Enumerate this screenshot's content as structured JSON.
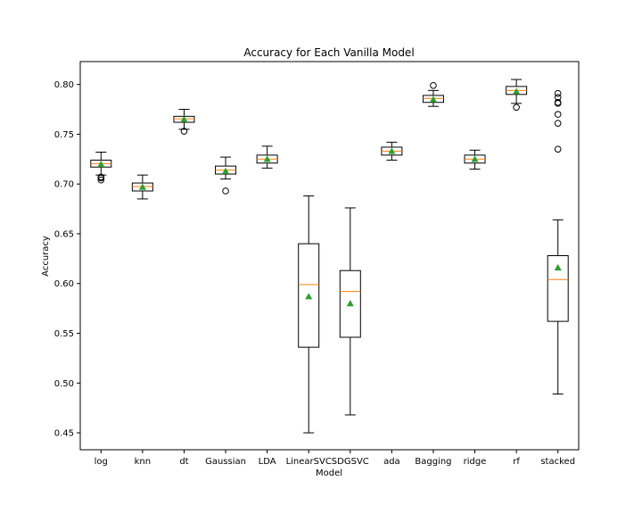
{
  "chart_data": {
    "type": "box",
    "title": "Accuracy for Each Vanilla Model",
    "xlabel": "Model",
    "ylabel": "Accuracy",
    "ylim": [
      0.433,
      0.823
    ],
    "yticks": [
      "0.45",
      "0.50",
      "0.55",
      "0.60",
      "0.65",
      "0.70",
      "0.75",
      "0.80"
    ],
    "categories": [
      "log",
      "knn",
      "dt",
      "Gaussian",
      "LDA",
      "LinearSVC",
      "SDGSVC",
      "ada",
      "Bagging",
      "ridge",
      "rf",
      "stacked"
    ],
    "boxes": [
      {
        "label": "log",
        "whisker_low": 0.709,
        "q1": 0.717,
        "median": 0.7205,
        "q3": 0.724,
        "whisker_high": 0.732,
        "mean": 0.72,
        "outliers": [
          0.704,
          0.706,
          0.707
        ]
      },
      {
        "label": "knn",
        "whisker_low": 0.685,
        "q1": 0.693,
        "median": 0.6975,
        "q3": 0.701,
        "whisker_high": 0.709,
        "mean": 0.697,
        "outliers": []
      },
      {
        "label": "dt",
        "whisker_low": 0.755,
        "q1": 0.762,
        "median": 0.7655,
        "q3": 0.768,
        "whisker_high": 0.775,
        "mean": 0.765,
        "outliers": [
          0.753
        ]
      },
      {
        "label": "Gaussian",
        "whisker_low": 0.705,
        "q1": 0.71,
        "median": 0.714,
        "q3": 0.718,
        "whisker_high": 0.727,
        "mean": 0.713,
        "outliers": [
          0.693
        ]
      },
      {
        "label": "LDA",
        "whisker_low": 0.716,
        "q1": 0.721,
        "median": 0.725,
        "q3": 0.729,
        "whisker_high": 0.738,
        "mean": 0.725,
        "outliers": []
      },
      {
        "label": "LinearSVC",
        "whisker_low": 0.45,
        "q1": 0.536,
        "median": 0.599,
        "q3": 0.64,
        "whisker_high": 0.688,
        "mean": 0.587,
        "outliers": []
      },
      {
        "label": "SDGSVC",
        "whisker_low": 0.468,
        "q1": 0.546,
        "median": 0.592,
        "q3": 0.613,
        "whisker_high": 0.676,
        "mean": 0.58,
        "outliers": []
      },
      {
        "label": "ada",
        "whisker_low": 0.724,
        "q1": 0.729,
        "median": 0.733,
        "q3": 0.737,
        "whisker_high": 0.742,
        "mean": 0.733,
        "outliers": []
      },
      {
        "label": "Bagging",
        "whisker_low": 0.778,
        "q1": 0.782,
        "median": 0.786,
        "q3": 0.789,
        "whisker_high": 0.794,
        "mean": 0.785,
        "outliers": [
          0.799
        ]
      },
      {
        "label": "ridge",
        "whisker_low": 0.715,
        "q1": 0.721,
        "median": 0.725,
        "q3": 0.729,
        "whisker_high": 0.734,
        "mean": 0.725,
        "outliers": []
      },
      {
        "label": "rf",
        "whisker_low": 0.781,
        "q1": 0.79,
        "median": 0.794,
        "q3": 0.798,
        "whisker_high": 0.805,
        "mean": 0.793,
        "outliers": [
          0.777
        ]
      },
      {
        "label": "stacked",
        "whisker_low": 0.489,
        "q1": 0.562,
        "median": 0.604,
        "q3": 0.628,
        "whisker_high": 0.664,
        "mean": 0.616,
        "outliers": [
          0.735,
          0.761,
          0.77,
          0.781,
          0.782,
          0.787,
          0.791
        ]
      }
    ],
    "grid": false,
    "legend": "none",
    "colors": {
      "box": "#000000",
      "median": "#ff7f0e",
      "mean_marker": "#2ca02c",
      "outlier": "#000000"
    }
  }
}
